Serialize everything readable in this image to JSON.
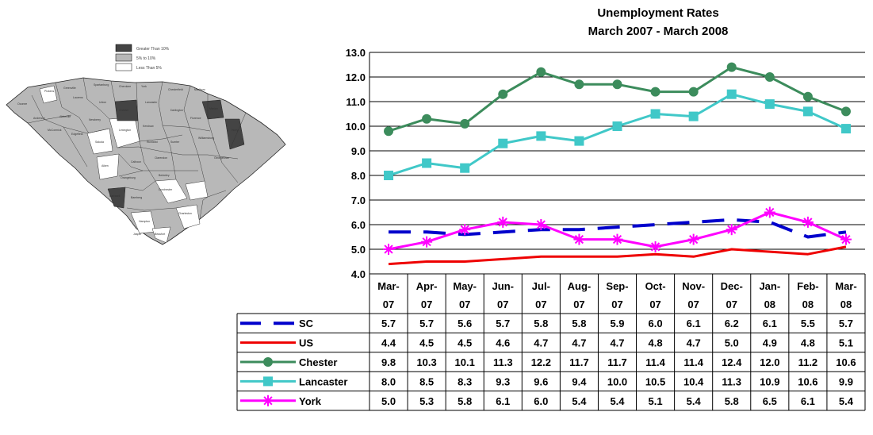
{
  "map": {
    "legend": [
      {
        "label": "Greater Than 10%",
        "color": "#444444"
      },
      {
        "label": "5% to 10%",
        "color": "#b8b8b8"
      },
      {
        "label": "Less Than 5%",
        "color": "#ffffff"
      }
    ]
  },
  "chart_data": {
    "type": "line",
    "title": "Unemployment Rates",
    "subtitle": "March 2007 - March 2008",
    "categories": [
      [
        "Mar-",
        "07"
      ],
      [
        "Apr-",
        "07"
      ],
      [
        "May-",
        "07"
      ],
      [
        "Jun-",
        "07"
      ],
      [
        "Jul-",
        "07"
      ],
      [
        "Aug-",
        "07"
      ],
      [
        "Sep-",
        "07"
      ],
      [
        "Oct-",
        "07"
      ],
      [
        "Nov-",
        "07"
      ],
      [
        "Dec-",
        "07"
      ],
      [
        "Jan-",
        "08"
      ],
      [
        "Feb-",
        "08"
      ],
      [
        "Mar-",
        "08"
      ]
    ],
    "ylim": [
      4.0,
      13.0
    ],
    "yticks": [
      "4.0",
      "5.0",
      "6.0",
      "7.0",
      "8.0",
      "9.0",
      "10.0",
      "11.0",
      "12.0",
      "13.0"
    ],
    "grid": true,
    "series": [
      {
        "name": "SC",
        "color": "#0000cc",
        "style": "dashed",
        "marker": "none",
        "values": [
          5.7,
          5.7,
          5.6,
          5.7,
          5.8,
          5.8,
          5.9,
          6.0,
          6.1,
          6.2,
          6.1,
          5.5,
          5.7
        ]
      },
      {
        "name": "US",
        "color": "#ee0000",
        "style": "solid",
        "marker": "none",
        "values": [
          4.4,
          4.5,
          4.5,
          4.6,
          4.7,
          4.7,
          4.7,
          4.8,
          4.7,
          5.0,
          4.9,
          4.8,
          5.1
        ]
      },
      {
        "name": "Chester",
        "color": "#3c8c5c",
        "style": "solid",
        "marker": "circle",
        "values": [
          9.8,
          10.3,
          10.1,
          11.3,
          12.2,
          11.7,
          11.7,
          11.4,
          11.4,
          12.4,
          12.0,
          11.2,
          10.6
        ]
      },
      {
        "name": "Lancaster",
        "color": "#40c8c8",
        "style": "solid",
        "marker": "square",
        "values": [
          8.0,
          8.5,
          8.3,
          9.3,
          9.6,
          9.4,
          10.0,
          10.5,
          10.4,
          11.3,
          10.9,
          10.6,
          9.9
        ]
      },
      {
        "name": "York",
        "color": "#ff00ff",
        "style": "solid",
        "marker": "star",
        "values": [
          5.0,
          5.3,
          5.8,
          6.1,
          6.0,
          5.4,
          5.4,
          5.1,
          5.4,
          5.8,
          6.5,
          6.1,
          5.4
        ]
      }
    ],
    "table": {
      "rows": [
        [
          "5.7",
          "5.7",
          "5.6",
          "5.7",
          "5.8",
          "5.8",
          "5.9",
          "6.0",
          "6.1",
          "6.2",
          "6.1",
          "5.5",
          "5.7"
        ],
        [
          "4.4",
          "4.5",
          "4.5",
          "4.6",
          "4.7",
          "4.7",
          "4.7",
          "4.8",
          "4.7",
          "5.0",
          "4.9",
          "4.8",
          "5.1"
        ],
        [
          "9.8",
          "10.3",
          "10.1",
          "11.3",
          "12.2",
          "11.7",
          "11.7",
          "11.4",
          "11.4",
          "12.4",
          "12.0",
          "11.2",
          "10.6"
        ],
        [
          "8.0",
          "8.5",
          "8.3",
          "9.3",
          "9.6",
          "9.4",
          "10.0",
          "10.5",
          "10.4",
          "11.3",
          "10.9",
          "10.6",
          "9.9"
        ],
        [
          "5.0",
          "5.3",
          "5.8",
          "6.1",
          "6.0",
          "5.4",
          "5.4",
          "5.1",
          "5.4",
          "5.8",
          "6.5",
          "6.1",
          "5.4"
        ]
      ]
    }
  }
}
